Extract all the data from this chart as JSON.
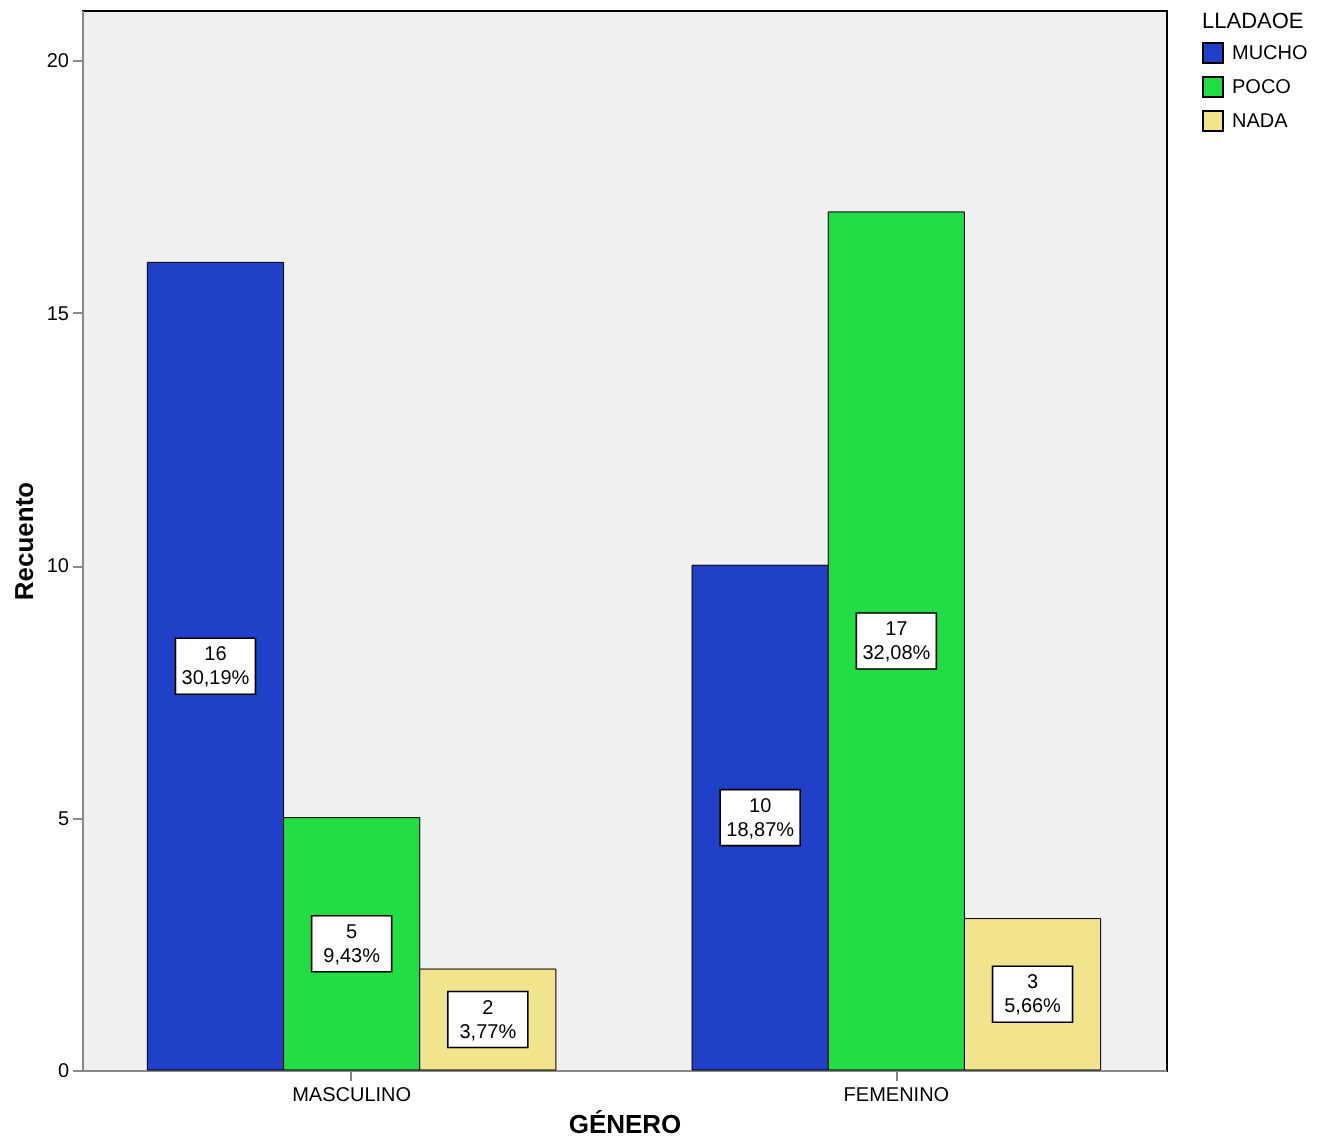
{
  "chart_data": {
    "type": "bar",
    "xlabel": "GÉNERO",
    "ylabel": "Recuento",
    "legend_title": "LLADAOE",
    "legend": "top right",
    "grid": false,
    "categories": [
      "MASCULINO",
      "FEMENINO"
    ],
    "ylim": [
      0,
      21
    ],
    "yticks": [
      0,
      5,
      10,
      15,
      20
    ],
    "series": [
      {
        "name": "MUCHO",
        "color": "#2040c8",
        "values": [
          16,
          10
        ],
        "value_labels": [
          "16\n30,19%",
          "10\n18,87%"
        ]
      },
      {
        "name": "POCO",
        "color": "#22dd44",
        "values": [
          5,
          17
        ],
        "value_labels": [
          "5\n9,43%",
          "17\n32,08%"
        ]
      },
      {
        "name": "NADA",
        "color": "#f2e48c",
        "values": [
          2,
          3
        ],
        "value_labels": [
          "2\n3,77%",
          "3\n5,66%"
        ]
      }
    ]
  }
}
